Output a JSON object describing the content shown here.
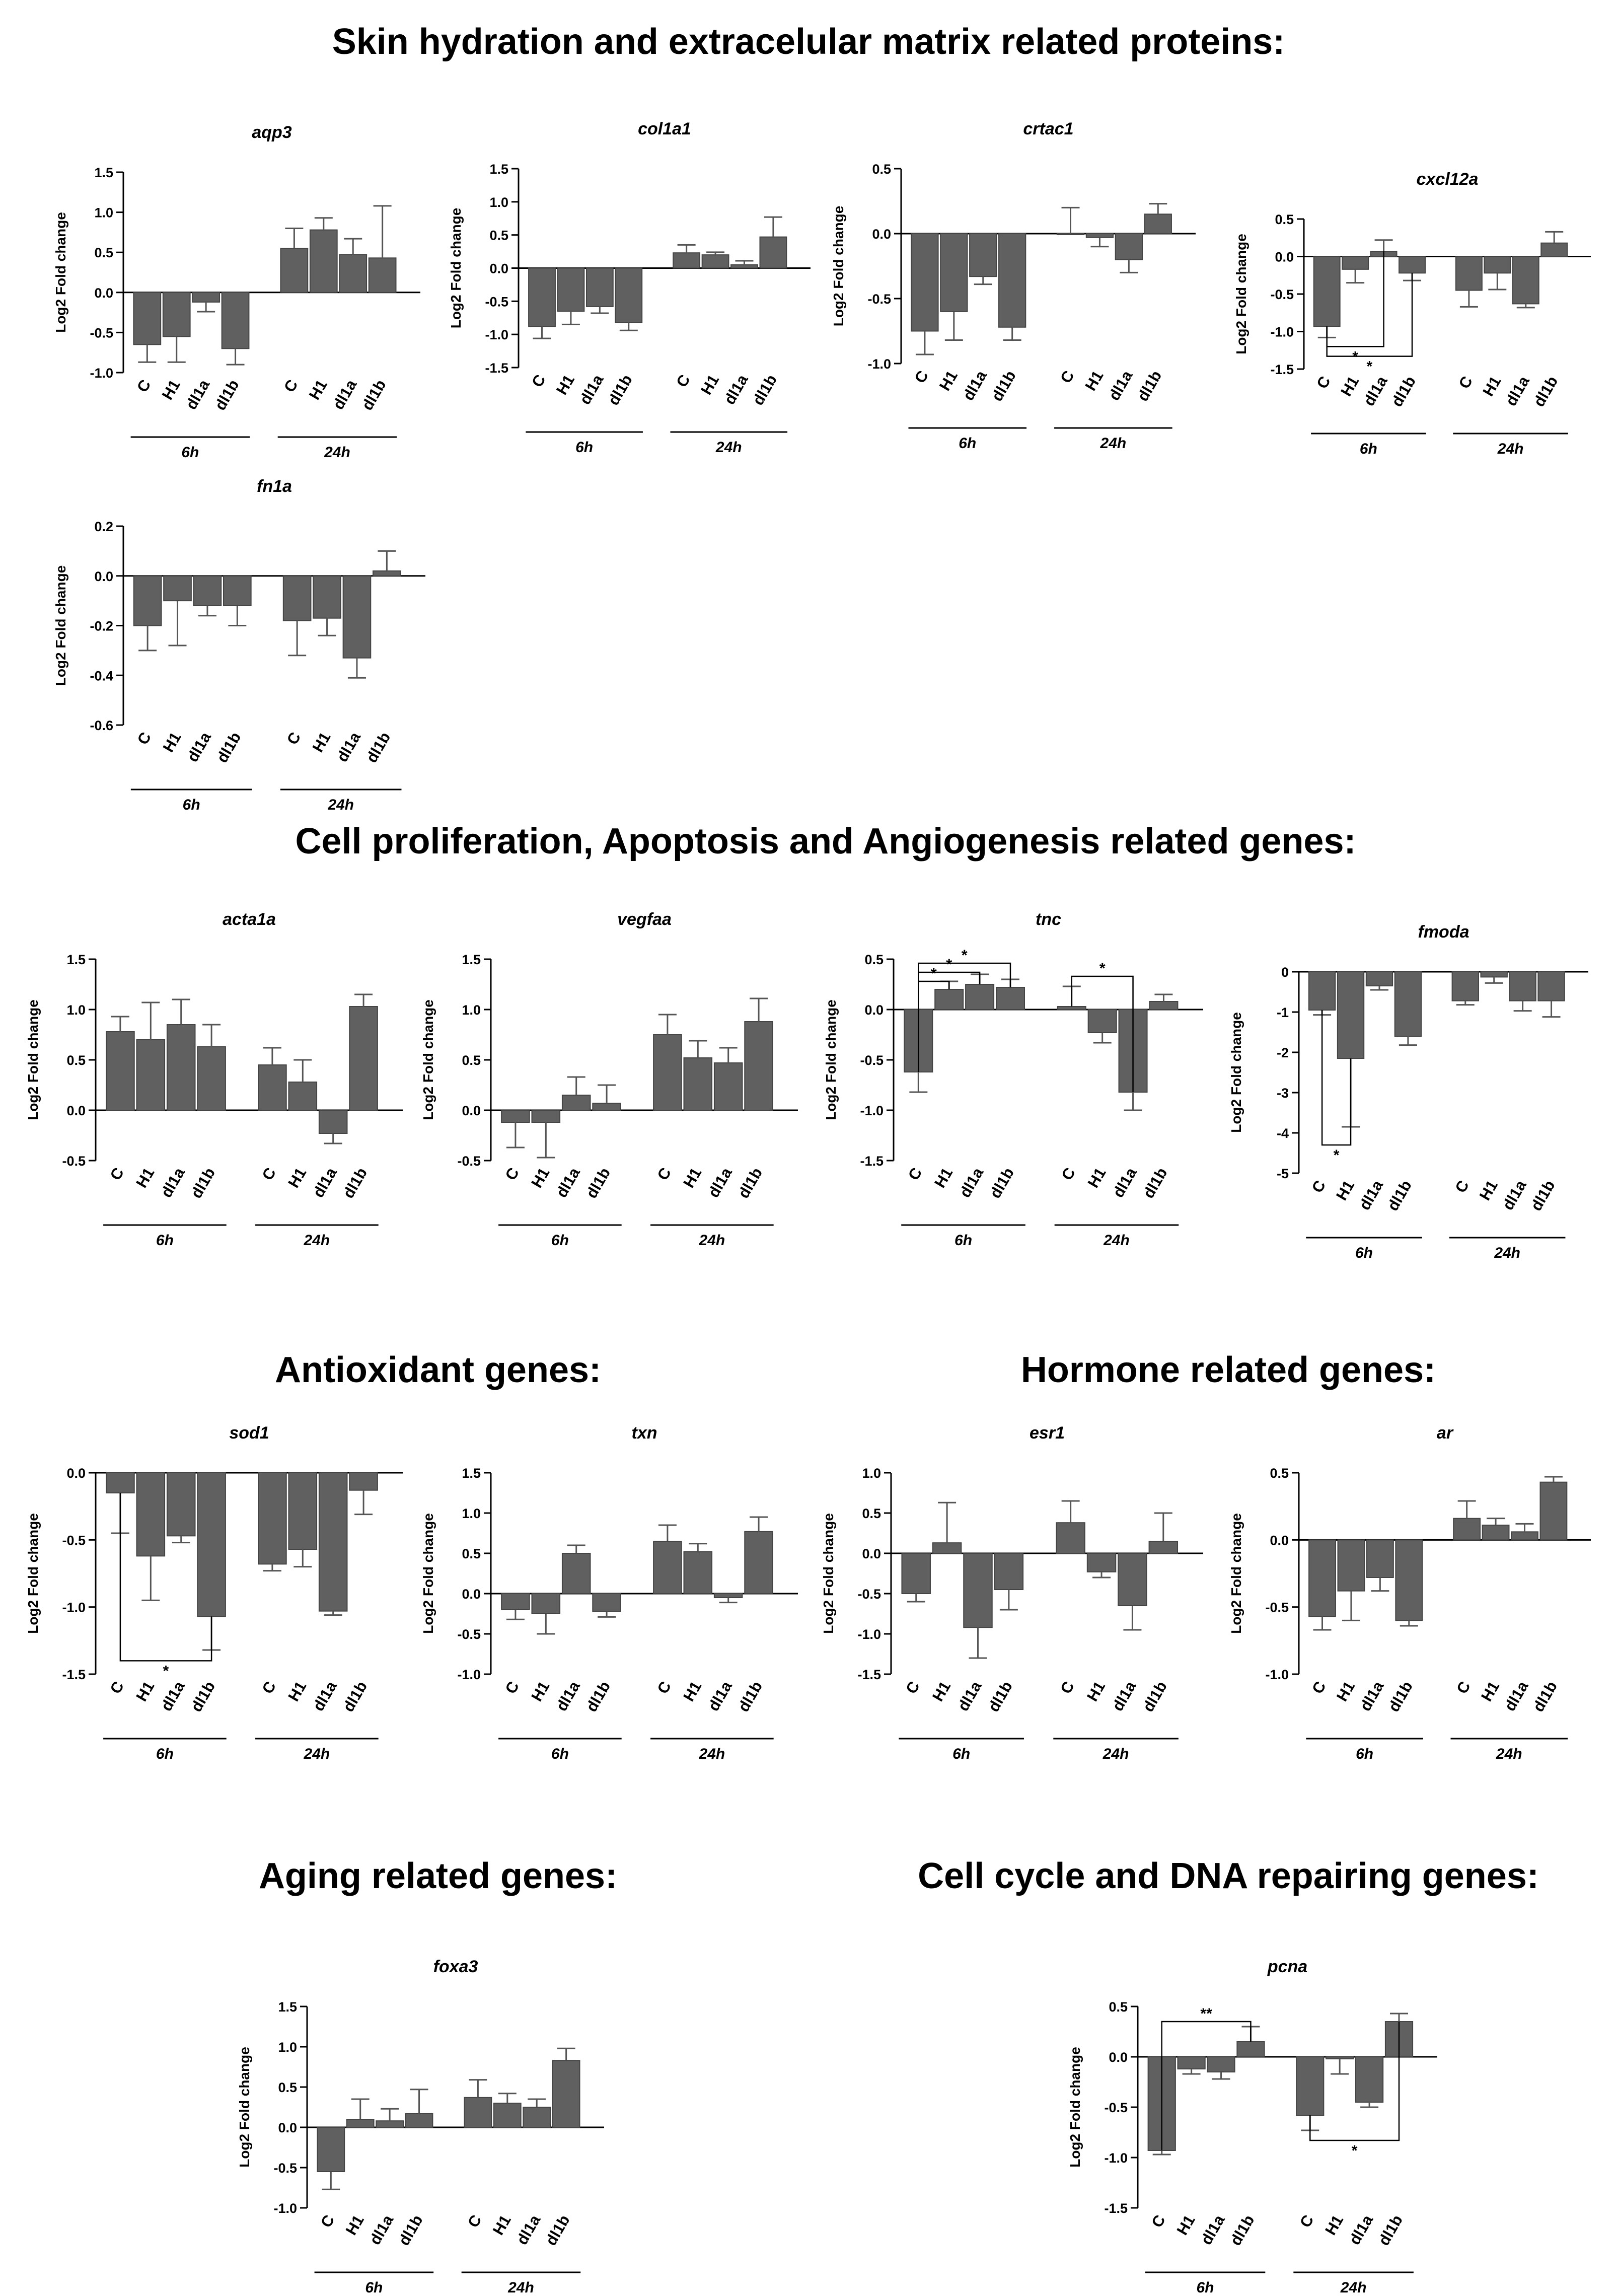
{
  "sections": [
    {
      "id": "skin",
      "title": "Skin hydration and extracelular matrix related proteins:"
    },
    {
      "id": "prolif",
      "title": "Cell proliferation, Apoptosis and Angiogenesis related genes:"
    },
    {
      "id": "antiox",
      "title": "Antioxidant genes:"
    },
    {
      "id": "hormone",
      "title": "Hormone related genes:"
    },
    {
      "id": "aging",
      "title": "Aging related genes:"
    },
    {
      "id": "cellcycle",
      "title": "Cell cycle and DNA repairing genes:"
    }
  ],
  "common": {
    "ylabel": "Log2 Fold change",
    "categories": [
      "C",
      "H1",
      "dl1a",
      "dl1b"
    ],
    "groups": [
      "6h",
      "24h"
    ],
    "bar_color": "#606060"
  },
  "chart_data": [
    {
      "type": "bar",
      "title": "aqp3",
      "ylabel": "Log2 Fold change",
      "ylim": [
        -1.0,
        1.5
      ],
      "ticks": [
        "1.5",
        "1.0",
        "0.5",
        "0.0",
        "-0.5",
        "-1.0"
      ],
      "categories": [
        "C",
        "H1",
        "dl1a",
        "dl1b"
      ],
      "groups": [
        "6h",
        "24h"
      ],
      "series": [
        {
          "name": "6h",
          "values": [
            -0.65,
            -0.55,
            -0.12,
            -0.7
          ],
          "errors": [
            0.22,
            0.32,
            0.12,
            0.2
          ]
        },
        {
          "name": "24h",
          "values": [
            0.55,
            0.78,
            0.47,
            0.43
          ],
          "errors": [
            0.25,
            0.15,
            0.2,
            0.65
          ]
        }
      ],
      "significance": []
    },
    {
      "type": "bar",
      "title": "col1a1",
      "ylabel": "Log2 Fold change",
      "ylim": [
        -1.5,
        1.5
      ],
      "ticks": [
        "1.5",
        "1.0",
        "0.5",
        "0.0",
        "-0.5",
        "-1.0",
        "-1.5"
      ],
      "categories": [
        "C",
        "H1",
        "dl1a",
        "dl1b"
      ],
      "groups": [
        "6h",
        "24h"
      ],
      "series": [
        {
          "name": "6h",
          "values": [
            -0.88,
            -0.65,
            -0.58,
            -0.82
          ],
          "errors": [
            0.18,
            0.2,
            0.1,
            0.12
          ]
        },
        {
          "name": "24h",
          "values": [
            0.23,
            0.2,
            0.05,
            0.47
          ],
          "errors": [
            0.12,
            0.04,
            0.06,
            0.3
          ]
        }
      ],
      "significance": []
    },
    {
      "type": "bar",
      "title": "crtac1",
      "ylabel": "Log2 Fold change",
      "ylim": [
        -1.0,
        0.5
      ],
      "ticks": [
        "0.5",
        "0.0",
        "-0.5",
        "-1.0"
      ],
      "categories": [
        "C",
        "H1",
        "dl1a",
        "dl1b"
      ],
      "groups": [
        "6h",
        "24h"
      ],
      "series": [
        {
          "name": "6h",
          "values": [
            -0.75,
            -0.6,
            -0.33,
            -0.72
          ],
          "errors": [
            0.18,
            0.22,
            0.06,
            0.1
          ]
        },
        {
          "name": "24h",
          "values": [
            0.0,
            -0.03,
            -0.2,
            0.15
          ],
          "errors": [
            0.2,
            0.07,
            0.1,
            0.08
          ]
        }
      ],
      "significance": []
    },
    {
      "type": "bar",
      "title": "cxcl12a",
      "ylabel": "Log2 Fold change",
      "ylim": [
        -1.5,
        0.5
      ],
      "ticks": [
        "0.5",
        "0.0",
        "-0.5",
        "-1.0",
        "-1.5"
      ],
      "categories": [
        "C",
        "H1",
        "dl1a",
        "dl1b"
      ],
      "groups": [
        "6h",
        "24h"
      ],
      "series": [
        {
          "name": "6h",
          "values": [
            -0.93,
            -0.17,
            0.07,
            -0.22
          ],
          "errors": [
            0.15,
            0.18,
            0.15,
            0.1
          ]
        },
        {
          "name": "24h",
          "values": [
            -0.45,
            -0.22,
            -0.63,
            0.18
          ],
          "errors": [
            0.22,
            0.22,
            0.05,
            0.15
          ]
        }
      ],
      "significance": [
        {
          "label": "*",
          "from": [
            0,
            0
          ],
          "to": [
            0,
            2
          ],
          "side": "below",
          "y": -1.2
        },
        {
          "label": "*",
          "from": [
            0,
            0
          ],
          "to": [
            0,
            3
          ],
          "side": "below",
          "y": -1.33
        }
      ]
    },
    {
      "type": "bar",
      "title": "fn1a",
      "ylabel": "Log2 Fold change",
      "ylim": [
        -0.6,
        0.2
      ],
      "ticks": [
        "0.2",
        "0.0",
        "-0.2",
        "-0.4",
        "-0.6"
      ],
      "categories": [
        "C",
        "H1",
        "dl1a",
        "dl1b"
      ],
      "groups": [
        "6h",
        "24h"
      ],
      "series": [
        {
          "name": "6h",
          "values": [
            -0.2,
            -0.1,
            -0.12,
            -0.12
          ],
          "errors": [
            0.1,
            0.18,
            0.04,
            0.08
          ]
        },
        {
          "name": "24h",
          "values": [
            -0.18,
            -0.17,
            -0.33,
            0.02
          ],
          "errors": [
            0.14,
            0.07,
            0.08,
            0.08
          ]
        }
      ],
      "significance": []
    },
    {
      "type": "bar",
      "title": "acta1a",
      "ylabel": "Log2 Fold change",
      "ylim": [
        -0.5,
        1.5
      ],
      "ticks": [
        "1.5",
        "1.0",
        "0.5",
        "0.0",
        "-0.5"
      ],
      "categories": [
        "C",
        "H1",
        "dl1a",
        "dl1b"
      ],
      "groups": [
        "6h",
        "24h"
      ],
      "series": [
        {
          "name": "6h",
          "values": [
            0.78,
            0.7,
            0.85,
            0.63
          ],
          "errors": [
            0.15,
            0.37,
            0.25,
            0.22
          ]
        },
        {
          "name": "24h",
          "values": [
            0.45,
            0.28,
            -0.23,
            1.03
          ],
          "errors": [
            0.17,
            0.22,
            0.1,
            0.12
          ]
        }
      ],
      "significance": []
    },
    {
      "type": "bar",
      "title": "vegfaa",
      "ylabel": "Log2 Fold change",
      "ylim": [
        -0.5,
        1.5
      ],
      "ticks": [
        "1.5",
        "1.0",
        "0.5",
        "0.0",
        "-0.5"
      ],
      "categories": [
        "C",
        "H1",
        "dl1a",
        "dl1b"
      ],
      "groups": [
        "6h",
        "24h"
      ],
      "series": [
        {
          "name": "6h",
          "values": [
            -0.12,
            -0.12,
            0.15,
            0.07
          ],
          "errors": [
            0.25,
            0.35,
            0.18,
            0.18
          ]
        },
        {
          "name": "24h",
          "values": [
            0.75,
            0.52,
            0.47,
            0.88
          ],
          "errors": [
            0.2,
            0.17,
            0.15,
            0.23
          ]
        }
      ],
      "significance": []
    },
    {
      "type": "bar",
      "title": "tnc",
      "ylabel": "Log2 Fold change",
      "ylim": [
        -1.5,
        0.5
      ],
      "ticks": [
        "0.5",
        "0.0",
        "-0.5",
        "-1.0",
        "-1.5"
      ],
      "categories": [
        "C",
        "H1",
        "dl1a",
        "dl1b"
      ],
      "groups": [
        "6h",
        "24h"
      ],
      "series": [
        {
          "name": "6h",
          "values": [
            -0.62,
            0.2,
            0.25,
            0.22
          ],
          "errors": [
            0.2,
            0.08,
            0.1,
            0.08
          ]
        },
        {
          "name": "24h",
          "values": [
            0.03,
            -0.23,
            -0.82,
            0.08
          ],
          "errors": [
            0.2,
            0.1,
            0.18,
            0.07
          ]
        }
      ],
      "significance": [
        {
          "label": "*",
          "from": [
            0,
            0
          ],
          "to": [
            0,
            1
          ],
          "side": "above",
          "y": 0.28
        },
        {
          "label": "*",
          "from": [
            0,
            0
          ],
          "to": [
            0,
            2
          ],
          "side": "above",
          "y": 0.37
        },
        {
          "label": "*",
          "from": [
            0,
            0
          ],
          "to": [
            0,
            3
          ],
          "side": "above",
          "y": 0.46
        },
        {
          "label": "*",
          "from": [
            1,
            0
          ],
          "to": [
            1,
            2
          ],
          "side": "above",
          "y": 0.33
        }
      ]
    },
    {
      "type": "bar",
      "title": "fmoda",
      "ylabel": "Log2 Fold change",
      "ylim": [
        -5,
        0
      ],
      "ticks": [
        "0",
        "-1",
        "-2",
        "-3",
        "-4",
        "-5"
      ],
      "categories": [
        "C",
        "H1",
        "dl1a",
        "dl1b"
      ],
      "groups": [
        "6h",
        "24h"
      ],
      "series": [
        {
          "name": "6h",
          "values": [
            -0.95,
            -2.15,
            -0.35,
            -1.6
          ],
          "errors": [
            0.12,
            1.7,
            0.1,
            0.22
          ]
        },
        {
          "name": "24h",
          "values": [
            -0.72,
            -0.13,
            -0.72,
            -0.72
          ],
          "errors": [
            0.1,
            0.15,
            0.25,
            0.4
          ]
        }
      ],
      "significance": [
        {
          "label": "*",
          "from": [
            0,
            0
          ],
          "to": [
            0,
            1
          ],
          "side": "below",
          "y": -4.3
        }
      ]
    },
    {
      "type": "bar",
      "title": "sod1",
      "ylabel": "Log2 Fold change",
      "ylim": [
        -1.5,
        0.0
      ],
      "ticks": [
        "0.0",
        "-0.5",
        "-1.0",
        "-1.5"
      ],
      "categories": [
        "C",
        "H1",
        "dl1a",
        "dl1b"
      ],
      "groups": [
        "6h",
        "24h"
      ],
      "series": [
        {
          "name": "6h",
          "values": [
            -0.15,
            -0.62,
            -0.47,
            -1.07
          ],
          "errors": [
            0.3,
            0.33,
            0.05,
            0.25
          ]
        },
        {
          "name": "24h",
          "values": [
            -0.68,
            -0.57,
            -1.03,
            -0.13
          ],
          "errors": [
            0.05,
            0.13,
            0.03,
            0.18
          ]
        }
      ],
      "significance": [
        {
          "label": "*",
          "from": [
            0,
            0
          ],
          "to": [
            0,
            3
          ],
          "side": "below",
          "y": -1.4
        }
      ]
    },
    {
      "type": "bar",
      "title": "txn",
      "ylabel": "Log2 Fold change",
      "ylim": [
        -1.0,
        1.5
      ],
      "ticks": [
        "1.5",
        "1.0",
        "0.5",
        "0.0",
        "-0.5",
        "-1.0"
      ],
      "categories": [
        "C",
        "H1",
        "dl1a",
        "dl1b"
      ],
      "groups": [
        "6h",
        "24h"
      ],
      "series": [
        {
          "name": "6h",
          "values": [
            -0.2,
            -0.25,
            0.5,
            -0.22
          ],
          "errors": [
            0.12,
            0.25,
            0.1,
            0.07
          ]
        },
        {
          "name": "24h",
          "values": [
            0.65,
            0.52,
            -0.05,
            0.77
          ],
          "errors": [
            0.2,
            0.1,
            0.06,
            0.18
          ]
        }
      ],
      "significance": []
    },
    {
      "type": "bar",
      "title": "esr1",
      "ylabel": "Log2 Fold change",
      "ylim": [
        -1.5,
        1.0
      ],
      "ticks": [
        "1.0",
        "0.5",
        "0.0",
        "-0.5",
        "-1.0",
        "-1.5"
      ],
      "categories": [
        "C",
        "H1",
        "dl1a",
        "dl1b"
      ],
      "groups": [
        "6h",
        "24h"
      ],
      "series": [
        {
          "name": "6h",
          "values": [
            -0.5,
            0.13,
            -0.92,
            -0.45
          ],
          "errors": [
            0.1,
            0.5,
            0.38,
            0.25
          ]
        },
        {
          "name": "24h",
          "values": [
            0.38,
            -0.23,
            -0.65,
            0.15
          ],
          "errors": [
            0.27,
            0.07,
            0.3,
            0.35
          ]
        }
      ],
      "significance": []
    },
    {
      "type": "bar",
      "title": "ar",
      "ylabel": "Log2 Fold change",
      "ylim": [
        -1.0,
        0.5
      ],
      "ticks": [
        "0.5",
        "0.0",
        "-0.5",
        "-1.0"
      ],
      "categories": [
        "C",
        "H1",
        "dl1a",
        "dl1b"
      ],
      "groups": [
        "6h",
        "24h"
      ],
      "series": [
        {
          "name": "6h",
          "values": [
            -0.57,
            -0.38,
            -0.28,
            -0.6
          ],
          "errors": [
            0.1,
            0.22,
            0.1,
            0.04
          ]
        },
        {
          "name": "24h",
          "values": [
            0.16,
            0.11,
            0.06,
            0.43
          ],
          "errors": [
            0.13,
            0.05,
            0.06,
            0.04
          ]
        }
      ],
      "significance": []
    },
    {
      "type": "bar",
      "title": "foxa3",
      "ylabel": "Log2 Fold change",
      "ylim": [
        -1.0,
        1.5
      ],
      "ticks": [
        "1.5",
        "1.0",
        "0.5",
        "0.0",
        "-0.5",
        "-1.0"
      ],
      "categories": [
        "C",
        "H1",
        "dl1a",
        "dl1b"
      ],
      "groups": [
        "6h",
        "24h"
      ],
      "series": [
        {
          "name": "6h",
          "values": [
            -0.55,
            0.1,
            0.08,
            0.17
          ],
          "errors": [
            0.22,
            0.25,
            0.15,
            0.3
          ]
        },
        {
          "name": "24h",
          "values": [
            0.37,
            0.3,
            0.25,
            0.83
          ],
          "errors": [
            0.22,
            0.12,
            0.1,
            0.15
          ]
        }
      ],
      "significance": []
    },
    {
      "type": "bar",
      "title": "pcna",
      "ylabel": "Log2 Fold change",
      "ylim": [
        -1.5,
        0.5
      ],
      "ticks": [
        "0.5",
        "0.0",
        "-0.5",
        "-1.0",
        "-1.5"
      ],
      "categories": [
        "C",
        "H1",
        "dl1a",
        "dl1b"
      ],
      "groups": [
        "6h",
        "24h"
      ],
      "series": [
        {
          "name": "6h",
          "values": [
            -0.93,
            -0.12,
            -0.15,
            0.15
          ],
          "errors": [
            0.04,
            0.05,
            0.07,
            0.15
          ]
        },
        {
          "name": "24h",
          "values": [
            -0.58,
            -0.02,
            -0.45,
            0.35
          ],
          "errors": [
            0.15,
            0.15,
            0.05,
            0.08
          ]
        }
      ],
      "significance": [
        {
          "label": "**",
          "from": [
            0,
            0
          ],
          "to": [
            0,
            3
          ],
          "side": "above",
          "y": 0.35
        },
        {
          "label": "*",
          "from": [
            1,
            0
          ],
          "to": [
            1,
            3
          ],
          "side": "below",
          "y": -0.83
        }
      ]
    }
  ]
}
